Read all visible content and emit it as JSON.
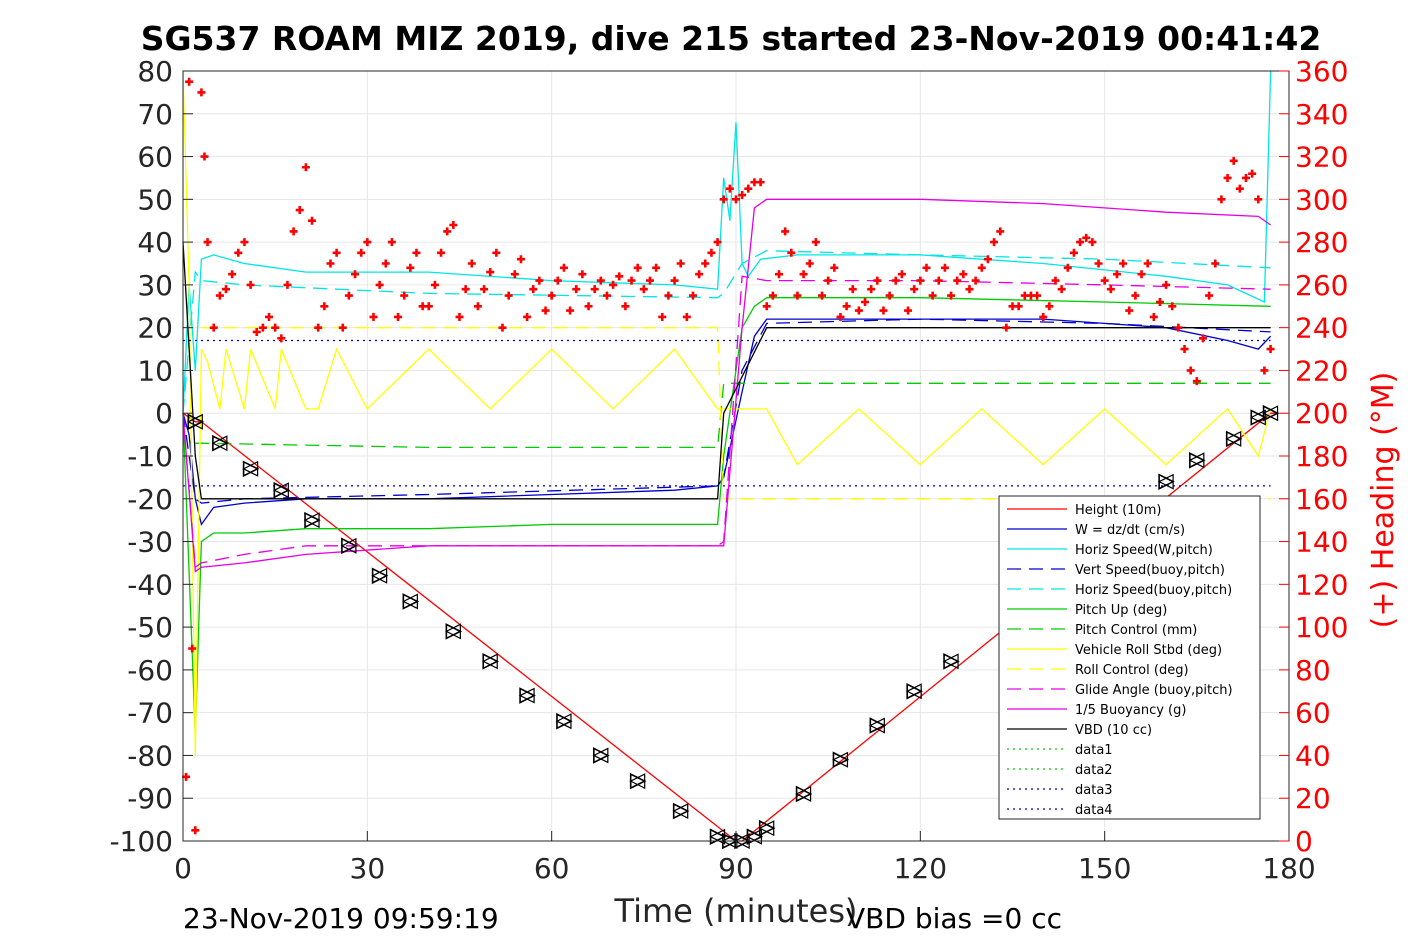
{
  "chart_data": {
    "type": "line",
    "title": "SG537 ROAM MIZ 2019, dive 215 started 23-Nov-2019 00:41:42",
    "xlabel": "Time (minutes)",
    "ylabel": "",
    "y2label": "(+) Heading (°M)",
    "footer_left": "23-Nov-2019 09:59:19",
    "footer_right": "VBD bias =0 cc",
    "xlim": [
      0,
      180
    ],
    "ylim": [
      -100,
      80
    ],
    "y2lim": [
      0,
      360
    ],
    "xticks": [
      0,
      30,
      60,
      90,
      120,
      150,
      180
    ],
    "yticks": [
      -100,
      -90,
      -80,
      -70,
      -60,
      -50,
      -40,
      -30,
      -20,
      -10,
      0,
      10,
      20,
      30,
      40,
      50,
      60,
      70,
      80
    ],
    "y2ticks": [
      0,
      20,
      40,
      60,
      80,
      100,
      120,
      140,
      160,
      180,
      200,
      220,
      240,
      260,
      280,
      300,
      320,
      340,
      360
    ],
    "grid": true,
    "legend_position": "bottom-right",
    "series": [
      {
        "name": "Height (10m)",
        "color": "#ff0000",
        "dash": "solid",
        "x": [
          0,
          1,
          2,
          3,
          90,
          91,
          177,
          178
        ],
        "values": [
          0,
          -1,
          -2,
          -2,
          -100,
          -100,
          0,
          0
        ]
      },
      {
        "name": "W = dz/dt (cm/s)",
        "color": "#0000cc",
        "dash": "solid",
        "x": [
          0,
          1,
          2,
          3,
          5,
          10,
          20,
          40,
          60,
          80,
          87,
          88,
          91,
          93,
          95,
          100,
          120,
          140,
          160,
          170,
          175,
          177
        ],
        "values": [
          0,
          -5,
          -20,
          -26,
          -22,
          -21,
          -20,
          -20,
          -19,
          -18,
          -17,
          -15,
          5,
          18,
          22,
          22,
          22,
          22,
          20,
          17,
          15,
          18
        ]
      },
      {
        "name": "Horiz Speed(W,pitch)",
        "color": "#00e5e5",
        "dash": "solid",
        "x": [
          0,
          1,
          2,
          3,
          5,
          10,
          20,
          40,
          60,
          80,
          87,
          88,
          89,
          90,
          91,
          92,
          94,
          100,
          120,
          140,
          160,
          170,
          176,
          177
        ],
        "values": [
          0,
          30,
          10,
          36,
          37,
          35,
          33,
          33,
          31,
          30,
          29,
          55,
          45,
          68,
          35,
          32,
          36,
          37,
          37,
          35,
          32,
          30,
          26,
          80
        ]
      },
      {
        "name": "Vert Speed(buoy,pitch)",
        "color": "#0000cc",
        "dash": "dashed",
        "x": [
          0,
          2,
          3,
          10,
          40,
          87,
          88,
          91,
          95,
          120,
          150,
          177
        ],
        "values": [
          0,
          -20,
          -21,
          -20,
          -19,
          -17,
          -15,
          10,
          21,
          22,
          21,
          19
        ]
      },
      {
        "name": "Horiz Speed(buoy,pitch)",
        "color": "#00e5e5",
        "dash": "dashed",
        "x": [
          0,
          2,
          3,
          10,
          40,
          87,
          88,
          91,
          95,
          120,
          150,
          177
        ],
        "values": [
          0,
          33,
          31,
          30,
          28,
          27,
          28,
          35,
          38,
          37,
          36,
          34
        ]
      },
      {
        "name": "Pitch Up (deg)",
        "color": "#00cc00",
        "dash": "solid",
        "x": [
          0,
          2,
          3,
          5,
          10,
          20,
          40,
          60,
          80,
          87,
          88,
          91,
          93,
          95,
          120,
          150,
          177
        ],
        "values": [
          0,
          -75,
          -30,
          -28,
          -28,
          -27,
          -27,
          -26,
          -26,
          -26,
          -10,
          20,
          25,
          27,
          27,
          26,
          25
        ]
      },
      {
        "name": "Pitch Control (mm)",
        "color": "#00cc00",
        "dash": "dashed",
        "x": [
          2,
          3,
          40,
          87,
          88,
          91,
          92,
          177
        ],
        "values": [
          -7,
          -7,
          -8,
          -8,
          7,
          7,
          7,
          7
        ]
      },
      {
        "name": "Vehicle Roll Stbd (deg)",
        "color": "#ffff00",
        "dash": "solid",
        "x": [
          0,
          1,
          2,
          3,
          4,
          6,
          7,
          10,
          11,
          15,
          16,
          20,
          22,
          25,
          30,
          40,
          50,
          60,
          70,
          80,
          87,
          88,
          95,
          100,
          110,
          120,
          130,
          140,
          150,
          160,
          170,
          175,
          177
        ],
        "values": [
          80,
          30,
          -80,
          15,
          12,
          1,
          15,
          1,
          15,
          1,
          15,
          1,
          1,
          15,
          1,
          15,
          1,
          15,
          1,
          15,
          1,
          1,
          1,
          -12,
          1,
          -12,
          1,
          -12,
          1,
          -12,
          1,
          -10,
          1
        ]
      },
      {
        "name": "Roll Control (deg)",
        "color": "#ffff00",
        "dash": "dashed",
        "x": [
          3,
          87,
          88,
          177
        ],
        "values": [
          20,
          20,
          -20,
          -20
        ]
      },
      {
        "name": "Glide Angle (buoy,pitch)",
        "color": "#e500e5",
        "dash": "dashed",
        "x": [
          0,
          2,
          3,
          10,
          20,
          40,
          60,
          87,
          88,
          91,
          95,
          120,
          150,
          177
        ],
        "values": [
          0,
          -36,
          -35,
          -33,
          -31,
          -31,
          -31,
          -31,
          -30,
          32,
          31,
          31,
          30,
          29
        ]
      },
      {
        "name": "1/5 Buoyancy (g)",
        "color": "#e500e5",
        "dash": "solid",
        "x": [
          0,
          2,
          3,
          10,
          20,
          40,
          60,
          87,
          88,
          91,
          93,
          95,
          120,
          140,
          160,
          175,
          177
        ],
        "values": [
          0,
          -37,
          -36,
          -35,
          -33,
          -31,
          -31,
          -31,
          -31,
          20,
          48,
          50,
          50,
          49,
          47,
          46,
          44
        ]
      },
      {
        "name": "VBD (10 cc)",
        "color": "#000000",
        "dash": "solid",
        "x": [
          0,
          2,
          3,
          10,
          87,
          88,
          95,
          120,
          177
        ],
        "values": [
          40,
          -10,
          -20,
          -20,
          -20,
          0,
          20,
          20,
          20
        ]
      },
      {
        "name": "data1",
        "color": "#00cc00",
        "dash": "dotted",
        "x": [],
        "values": []
      },
      {
        "name": "data2",
        "color": "#00cc00",
        "dash": "dotted",
        "x": [],
        "values": []
      },
      {
        "name": "data3",
        "color": "#0000cc",
        "dash": "dotted",
        "x": [
          0,
          87,
          88,
          177
        ],
        "values": [
          17,
          17,
          17,
          17
        ]
      },
      {
        "name": "data4",
        "color": "#0000cc",
        "dash": "dotted",
        "x": [
          0,
          87,
          88,
          177
        ],
        "values": [
          -17,
          -17,
          -17,
          -17
        ]
      }
    ],
    "height_markers": {
      "name": "Height (10m) markers",
      "color": "#000000",
      "x": [
        2,
        6,
        11,
        16,
        21,
        27,
        32,
        37,
        44,
        50,
        56,
        62,
        68,
        74,
        81,
        87,
        89,
        91,
        93,
        95,
        101,
        107,
        113,
        119,
        125,
        160,
        165,
        171,
        175,
        177
      ],
      "values": [
        -2,
        -7,
        -13,
        -18,
        -25,
        -31,
        -38,
        -44,
        -51,
        -58,
        -66,
        -72,
        -80,
        -86,
        -93,
        -99,
        -100,
        -100,
        -99,
        -97,
        -89,
        -81,
        -73,
        -65,
        -58,
        -16,
        -11,
        -6,
        -1,
        0
      ]
    },
    "heading": {
      "name": "(+) Heading",
      "color": "#ff0000",
      "marker": "+",
      "axis": "right",
      "x": [
        0.5,
        1,
        1.5,
        2,
        3,
        3.5,
        4,
        5,
        6,
        7,
        8,
        9,
        10,
        11,
        12,
        13,
        14,
        15,
        16,
        17,
        18,
        19,
        20,
        21,
        22,
        23,
        24,
        25,
        26,
        27,
        28,
        29,
        30,
        31,
        32,
        33,
        34,
        35,
        36,
        37,
        38,
        39,
        40,
        41,
        42,
        43,
        44,
        45,
        46,
        47,
        48,
        49,
        50,
        51,
        52,
        53,
        54,
        55,
        56,
        57,
        58,
        59,
        60,
        61,
        62,
        63,
        64,
        65,
        66,
        67,
        68,
        69,
        70,
        71,
        72,
        73,
        74,
        75,
        76,
        77,
        78,
        79,
        80,
        81,
        82,
        83,
        84,
        85,
        86,
        87,
        88,
        89,
        90,
        91,
        92,
        93,
        94,
        95,
        96,
        97,
        98,
        99,
        100,
        101,
        102,
        103,
        104,
        105,
        106,
        107,
        108,
        109,
        110,
        111,
        112,
        113,
        114,
        115,
        116,
        117,
        118,
        119,
        120,
        121,
        122,
        123,
        124,
        125,
        126,
        127,
        128,
        129,
        130,
        131,
        132,
        133,
        134,
        135,
        136,
        137,
        138,
        139,
        140,
        141,
        142,
        143,
        144,
        145,
        146,
        147,
        148,
        149,
        150,
        151,
        152,
        153,
        154,
        155,
        156,
        157,
        158,
        159,
        160,
        161,
        162,
        163,
        164,
        165,
        166,
        167,
        168,
        169,
        170,
        171,
        172,
        173,
        174,
        175,
        176,
        177
      ],
      "values": [
        30,
        355,
        90,
        5,
        350,
        320,
        280,
        240,
        255,
        258,
        265,
        275,
        280,
        260,
        238,
        240,
        245,
        240,
        235,
        260,
        285,
        295,
        315,
        290,
        240,
        250,
        270,
        275,
        240,
        255,
        265,
        275,
        280,
        245,
        260,
        270,
        280,
        245,
        255,
        268,
        275,
        250,
        250,
        260,
        275,
        285,
        288,
        245,
        258,
        270,
        250,
        258,
        266,
        275,
        240,
        255,
        265,
        272,
        245,
        258,
        262,
        248,
        255,
        262,
        268,
        248,
        258,
        265,
        250,
        258,
        262,
        255,
        260,
        264,
        250,
        262,
        268,
        258,
        262,
        268,
        245,
        255,
        262,
        270,
        245,
        255,
        265,
        270,
        275,
        280,
        300,
        305,
        300,
        302,
        305,
        308,
        308,
        250,
        255,
        265,
        285,
        275,
        255,
        265,
        270,
        280,
        255,
        262,
        268,
        245,
        250,
        258,
        248,
        252,
        258,
        262,
        248,
        255,
        262,
        265,
        248,
        258,
        262,
        268,
        255,
        262,
        268,
        255,
        262,
        265,
        258,
        262,
        268,
        272,
        280,
        285,
        240,
        250,
        250,
        255,
        255,
        255,
        245,
        250,
        262,
        258,
        268,
        275,
        280,
        282,
        280,
        270,
        262,
        258,
        265,
        270,
        248,
        255,
        265,
        270,
        245,
        252,
        260,
        250,
        240,
        230,
        220,
        215,
        235,
        255,
        270,
        300,
        310,
        318,
        305,
        310,
        312,
        300,
        220,
        230
      ]
    }
  }
}
